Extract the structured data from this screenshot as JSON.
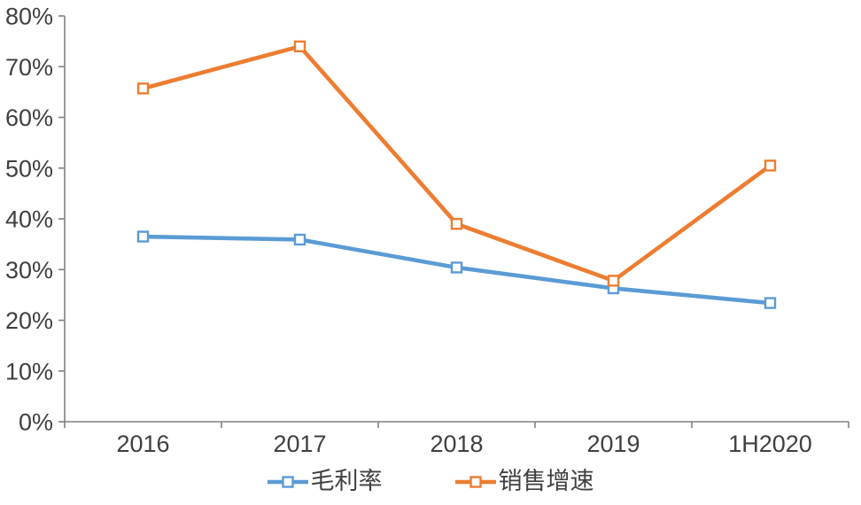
{
  "chart_data": {
    "type": "line",
    "title": "",
    "xlabel": "",
    "ylabel": "",
    "categories": [
      "2016",
      "2017",
      "2018",
      "2019",
      "1H2020"
    ],
    "series": [
      {
        "name": "毛利率",
        "color": "#5B9BD5",
        "marker": "hollow-square",
        "values": [
          36.5,
          35.9,
          30.4,
          26.3,
          23.4
        ]
      },
      {
        "name": "销售增速",
        "color": "#ED7D31",
        "marker": "hollow-square",
        "values": [
          65.7,
          74.0,
          39.0,
          27.8,
          50.5
        ]
      }
    ],
    "ylim": [
      0,
      80
    ],
    "y_tick_step": 10,
    "y_tick_labels": [
      "0%",
      "10%",
      "20%",
      "30%",
      "40%",
      "50%",
      "60%",
      "70%",
      "80%"
    ],
    "grid": false,
    "legend_position": "bottom",
    "axis_color": "#808080",
    "text_color": "#404040",
    "background_color": "#ffffff"
  }
}
